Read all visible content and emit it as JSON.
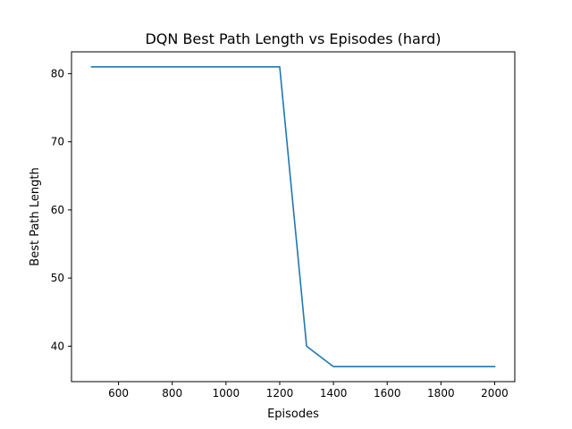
{
  "chart_data": {
    "type": "line",
    "title": "DQN Best Path Length vs Episodes (hard)",
    "xlabel": "Episodes",
    "ylabel": "Best Path Length",
    "xlim": [
      425,
      2075
    ],
    "ylim": [
      34.8,
      83.2
    ],
    "xticks": [
      600,
      800,
      1000,
      1200,
      1400,
      1600,
      1800,
      2000
    ],
    "yticks": [
      40,
      50,
      60,
      70,
      80
    ],
    "grid": false,
    "series": [
      {
        "color": "#1f77b4",
        "x": [
          500,
          600,
          700,
          800,
          900,
          1000,
          1100,
          1200,
          1300,
          1400,
          1500,
          1600,
          1700,
          1800,
          1900,
          2000
        ],
        "y": [
          81,
          81,
          81,
          81,
          81,
          81,
          81,
          81,
          40,
          37,
          37,
          37,
          37,
          37,
          37,
          37
        ]
      }
    ]
  }
}
